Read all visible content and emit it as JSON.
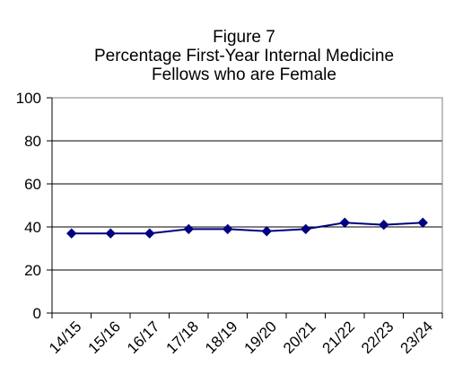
{
  "chart_data": {
    "type": "line",
    "title_lines": [
      "Figure 7",
      "Percentage First-Year Internal Medicine",
      "Fellows who are Female"
    ],
    "xlabel": "",
    "ylabel": "",
    "categories": [
      "14/15",
      "15/16",
      "16/17",
      "17/18",
      "18/19",
      "19/20",
      "20/21",
      "21/22",
      "22/23",
      "23/24"
    ],
    "series": [
      {
        "values": [
          37,
          37,
          37,
          39,
          39,
          38,
          39,
          42,
          41,
          42
        ],
        "color": "#000080",
        "marker": "diamond"
      }
    ],
    "ylim": [
      0,
      100
    ],
    "yticks": [
      "0",
      "20",
      "40",
      "60",
      "80",
      "100"
    ],
    "grid": true,
    "legend": "none"
  }
}
